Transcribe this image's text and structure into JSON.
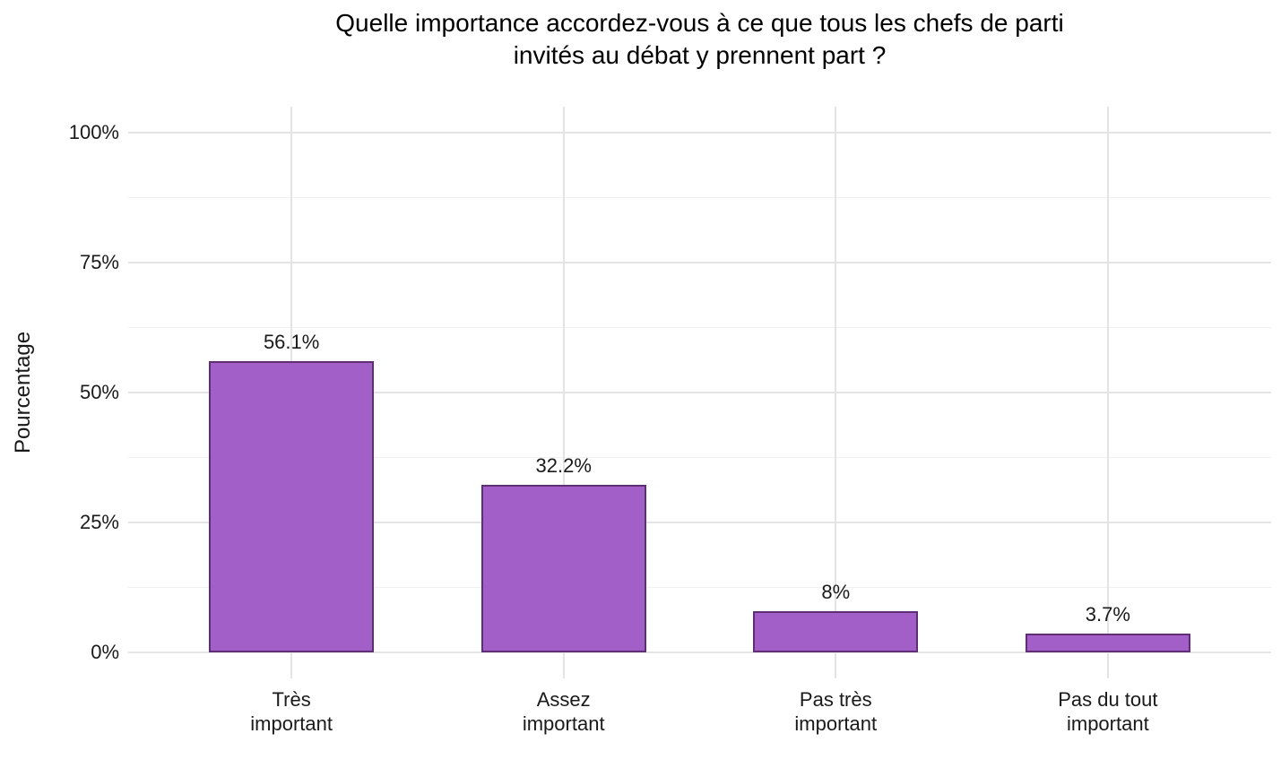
{
  "header": {
    "title_display": "Quelle importance accordez-vous à ce que tous les chefs de parti\ninvités au débat y prennent part ?"
  },
  "chart_data": {
    "type": "bar",
    "title": "Quelle importance accordez-vous à ce que tous les chefs de parti invités au débat y prennent part ?",
    "xlabel": "",
    "ylabel": "Pourcentage",
    "categories": [
      "Très\nimportant",
      "Assez\nimportant",
      "Pas très\nimportant",
      "Pas du tout\nimportant"
    ],
    "values": [
      56.1,
      32.2,
      8,
      3.7
    ],
    "value_labels": [
      "56.1%",
      "32.2%",
      "8%",
      "3.7%"
    ],
    "ylim": [
      0,
      100
    ],
    "yticks": [
      0,
      25,
      50,
      75,
      100
    ],
    "ytick_labels": [
      "0%",
      "25%",
      "50%",
      "75%",
      "100%"
    ],
    "minor_yticks": [
      12.5,
      37.5,
      62.5,
      87.5
    ],
    "grid": "on",
    "legend": "none",
    "colors": {
      "bar_fill": "#a25fc8",
      "bar_border": "#5f2e74",
      "grid_major": "#e4e4e4",
      "grid_minor": "#f0f0f0",
      "text": "#1a1a1a",
      "background": "#ffffff"
    }
  }
}
